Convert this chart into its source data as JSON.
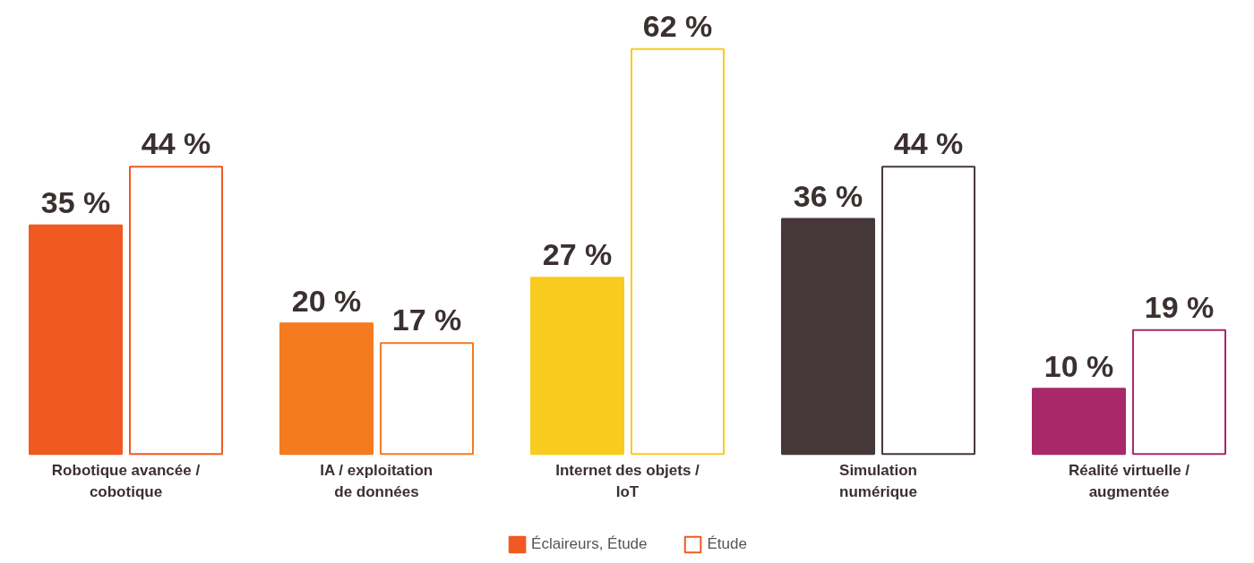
{
  "chart_data": {
    "type": "bar",
    "tick_labels": false,
    "categories": [
      "Robotique avancée /\ncobotique",
      "IA / exploitation\nde données",
      "Internet des objets /\nIoT",
      "Simulation\nnumérique",
      "Réalité virtuelle /\naugmentée"
    ],
    "series": [
      {
        "name": "Éclaireurs, Étude",
        "colors": [
          "#f05a22",
          "#f47b20",
          "#f9cb1e",
          "#463838",
          "#a8286a"
        ],
        "values": [
          35,
          20,
          27,
          36,
          10
        ],
        "value_labels": [
          "35 %",
          "20 %",
          "27 %",
          "36 %",
          "10 %"
        ]
      },
      {
        "name": "Étude",
        "color": "#ffffff",
        "colors": [
          "#f05a22",
          "#f47b20",
          "#f9cb1e",
          "#463838",
          "#a8286a"
        ],
        "values": [
          44,
          17,
          62,
          44,
          19
        ],
        "value_labels": [
          "44 %",
          "17 %",
          "62 %",
          "44 %",
          "19 %"
        ]
      }
    ],
    "legend": "bottom",
    "grid": false
  }
}
